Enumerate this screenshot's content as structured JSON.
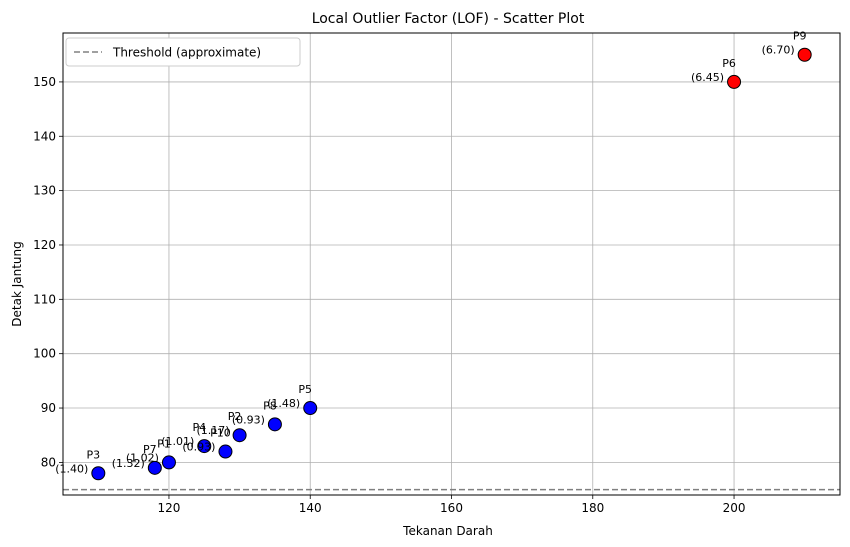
{
  "chart_data": {
    "type": "scatter",
    "title": "Local Outlier Factor (LOF) - Scatter Plot",
    "xlabel": "Tekanan Darah",
    "ylabel": "Detak Jantung",
    "xlim": [
      105,
      215
    ],
    "ylim": [
      74,
      159
    ],
    "xticks": [
      120,
      140,
      160,
      180,
      200
    ],
    "yticks": [
      80,
      90,
      100,
      110,
      120,
      130,
      140,
      150
    ],
    "grid": true,
    "legend": {
      "position": "top-left",
      "entries": [
        "Threshold (approximate)"
      ]
    },
    "threshold": {
      "y": 75,
      "label": "Threshold (approximate)",
      "color": "#808080",
      "style": "dashed"
    },
    "colors": {
      "inlier": "#0000ff",
      "outlier": "#ff0000",
      "edge": "#000000"
    },
    "points": [
      {
        "label": "P1",
        "score": "(1.02)",
        "x": 120,
        "y": 80,
        "outlier": false
      },
      {
        "label": "P2",
        "score": "(1.17)",
        "x": 130,
        "y": 85,
        "outlier": false
      },
      {
        "label": "P3",
        "score": "(1.40)",
        "x": 110,
        "y": 78,
        "outlier": false
      },
      {
        "label": "P4",
        "score": "(1.01)",
        "x": 125,
        "y": 83,
        "outlier": false
      },
      {
        "label": "P5",
        "score": "(1.48)",
        "x": 140,
        "y": 90,
        "outlier": false
      },
      {
        "label": "P6",
        "score": "(6.45)",
        "x": 200,
        "y": 150,
        "outlier": true
      },
      {
        "label": "P7",
        "score": "(1.32)",
        "x": 118,
        "y": 79,
        "outlier": false
      },
      {
        "label": "P8",
        "score": "(0.93)",
        "x": 135,
        "y": 87,
        "outlier": false
      },
      {
        "label": "P9",
        "score": "(6.70)",
        "x": 210,
        "y": 155,
        "outlier": true
      },
      {
        "label": "P10",
        "score": "(0.93)",
        "x": 128,
        "y": 82,
        "outlier": false
      }
    ]
  }
}
